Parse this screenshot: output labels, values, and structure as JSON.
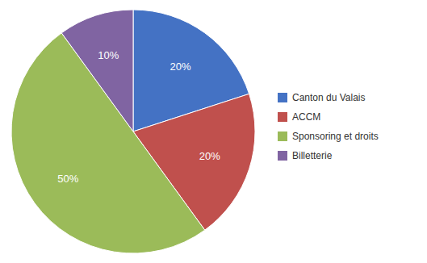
{
  "chart_data": {
    "type": "pie",
    "categories": [
      "Canton du Valais",
      "ACCM",
      "Sponsoring et droits",
      "Billetterie"
    ],
    "values": [
      20,
      20,
      50,
      10
    ],
    "value_labels": [
      "20%",
      "20%",
      "50%",
      "10%"
    ],
    "colors": [
      "#4472C4",
      "#C0504D",
      "#9BBB59",
      "#8064A2"
    ],
    "data_labels": true,
    "legend": "right"
  }
}
